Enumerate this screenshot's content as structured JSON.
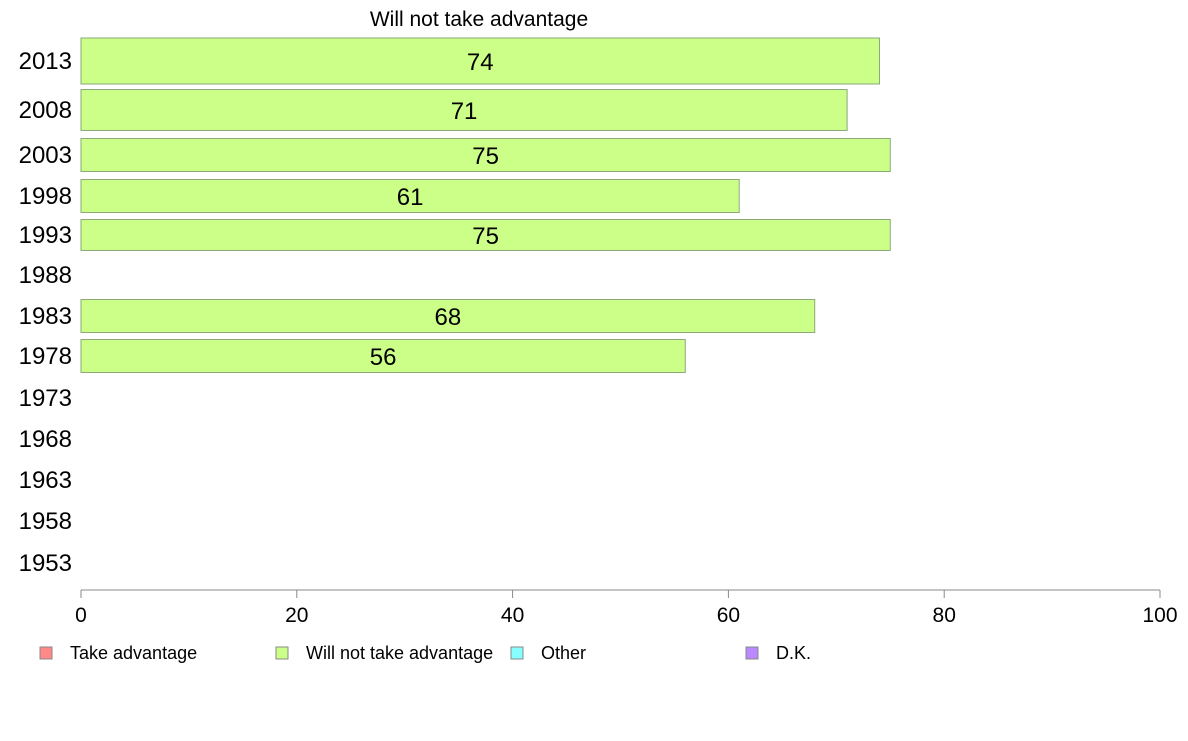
{
  "chart_data": {
    "type": "bar",
    "orientation": "horizontal",
    "title": "Will not take advantage",
    "categories": [
      "2013",
      "2008",
      "2003",
      "1998",
      "1993",
      "1988",
      "1983",
      "1978",
      "1973",
      "1968",
      "1963",
      "1958",
      "1953"
    ],
    "series": [
      {
        "name": "Will not take advantage",
        "color": "#ccff88",
        "values": [
          74,
          71,
          75,
          61,
          75,
          null,
          68,
          56,
          null,
          null,
          null,
          null,
          null
        ],
        "labels": [
          "74",
          "71",
          "75",
          "61",
          "75",
          "",
          "68",
          "56",
          "",
          "",
          "",
          "",
          ""
        ]
      }
    ],
    "xlim": [
      0,
      100
    ],
    "xticks": [
      "0",
      "20",
      "40",
      "60",
      "80",
      "100"
    ],
    "grid": false,
    "legend": {
      "placement": "bottom",
      "entries": [
        {
          "label": "Take advantage",
          "color": "#ff8888"
        },
        {
          "label": "Will not take advantage",
          "color": "#ccff88"
        },
        {
          "label": "Other",
          "color": "#88ffff"
        },
        {
          "label": "D.K.",
          "color": "#bb88ff"
        }
      ]
    }
  }
}
